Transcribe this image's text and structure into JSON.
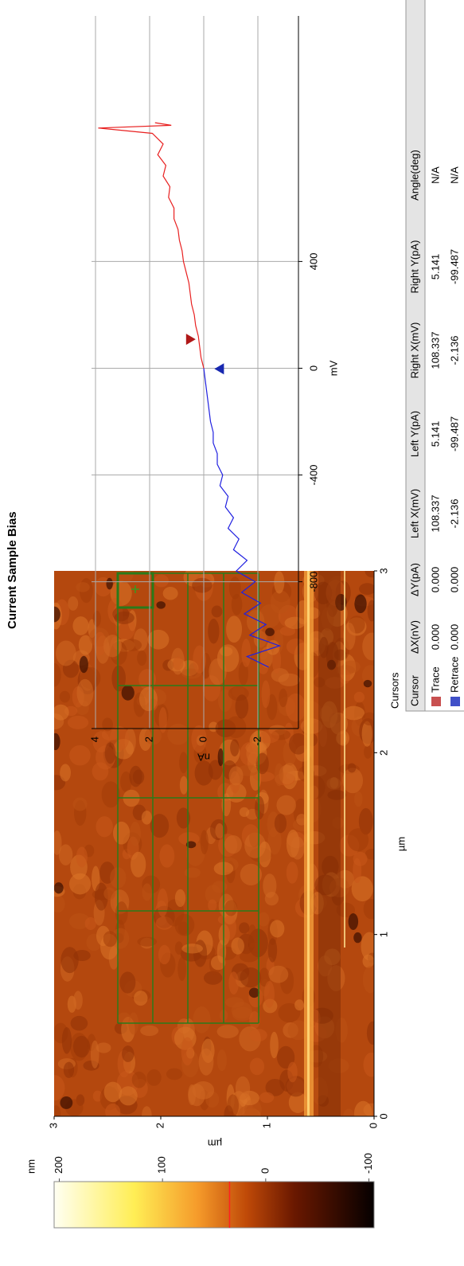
{
  "chart_data": [
    {
      "type": "image",
      "xlabel": "µm",
      "ylabel": "µm",
      "xlim": [
        0,
        3
      ],
      "ylim": [
        0,
        3
      ],
      "xticks": [
        0,
        1,
        2,
        3
      ],
      "yticks": [
        0,
        1,
        2,
        3
      ],
      "colorbar": {
        "label": "nm",
        "lim": [
          -105,
          205
        ],
        "ticks": [
          200,
          100,
          0,
          -100
        ],
        "marker": 35,
        "marker_color": "#ff2020"
      }
    },
    {
      "type": "line",
      "title": "Current  Sample Bias",
      "xlabel": "mV",
      "ylabel": "nA",
      "xlim": [
        -1350,
        1320
      ],
      "ylim": [
        -3.5,
        4.0
      ],
      "xticks": [
        -800,
        -400,
        0,
        400
      ],
      "yticks": [
        4,
        2,
        0,
        -2
      ],
      "grid": true,
      "series": [
        {
          "color": "#2020e0",
          "x": [
            -1120,
            -1080,
            -1040,
            -1000,
            -960,
            -920,
            -880,
            -840,
            -800,
            -760,
            -720,
            -680,
            -640,
            -600,
            -560,
            -520,
            -480,
            -440,
            -400,
            -360,
            -320,
            -280,
            -240,
            -200,
            -160,
            -120,
            -80,
            -40,
            0
          ],
          "values": [
            -2.4,
            -1.6,
            -2.8,
            -1.7,
            -2.3,
            -1.5,
            -2.1,
            -1.4,
            -1.9,
            -1.2,
            -1.6,
            -1.1,
            -1.3,
            -0.9,
            -1.1,
            -0.8,
            -0.9,
            -0.6,
            -0.7,
            -0.5,
            -0.5,
            -0.35,
            -0.35,
            -0.25,
            -0.2,
            -0.15,
            -0.1,
            -0.05,
            0
          ]
        },
        {
          "color": "#e82020",
          "x": [
            0,
            40,
            80,
            120,
            160,
            200,
            240,
            280,
            320,
            360,
            400,
            440,
            480,
            520,
            560,
            600,
            640,
            680,
            720,
            760,
            800,
            840,
            880,
            900,
            910,
            920
          ],
          "values": [
            0,
            0.1,
            0.15,
            0.2,
            0.3,
            0.35,
            0.45,
            0.5,
            0.55,
            0.65,
            0.75,
            0.8,
            0.9,
            0.95,
            1.1,
            1.1,
            1.3,
            1.25,
            1.5,
            1.4,
            1.7,
            1.5,
            1.9,
            3.9,
            1.2,
            1.8
          ]
        }
      ]
    }
  ],
  "cursors": {
    "title": "Cursors",
    "header": [
      "Cursor",
      "ΔX(nV)",
      "ΔY(pA)",
      "Left X(mV)",
      "Left Y(pA)",
      "Right X(mV)",
      "Right Y(pA)",
      "Angle(deg)"
    ],
    "rows": [
      [
        "Trace",
        "0.000",
        "0.000",
        "108.337",
        "5.141",
        "108.337",
        "5.141",
        "N/A"
      ],
      [
        "Retrace",
        "0.000",
        "0.000",
        "-2.136",
        "-99.487",
        "-2.136",
        "-99.487",
        "N/A"
      ]
    ],
    "swatches": [
      "#c85050",
      "#4050c8"
    ]
  }
}
